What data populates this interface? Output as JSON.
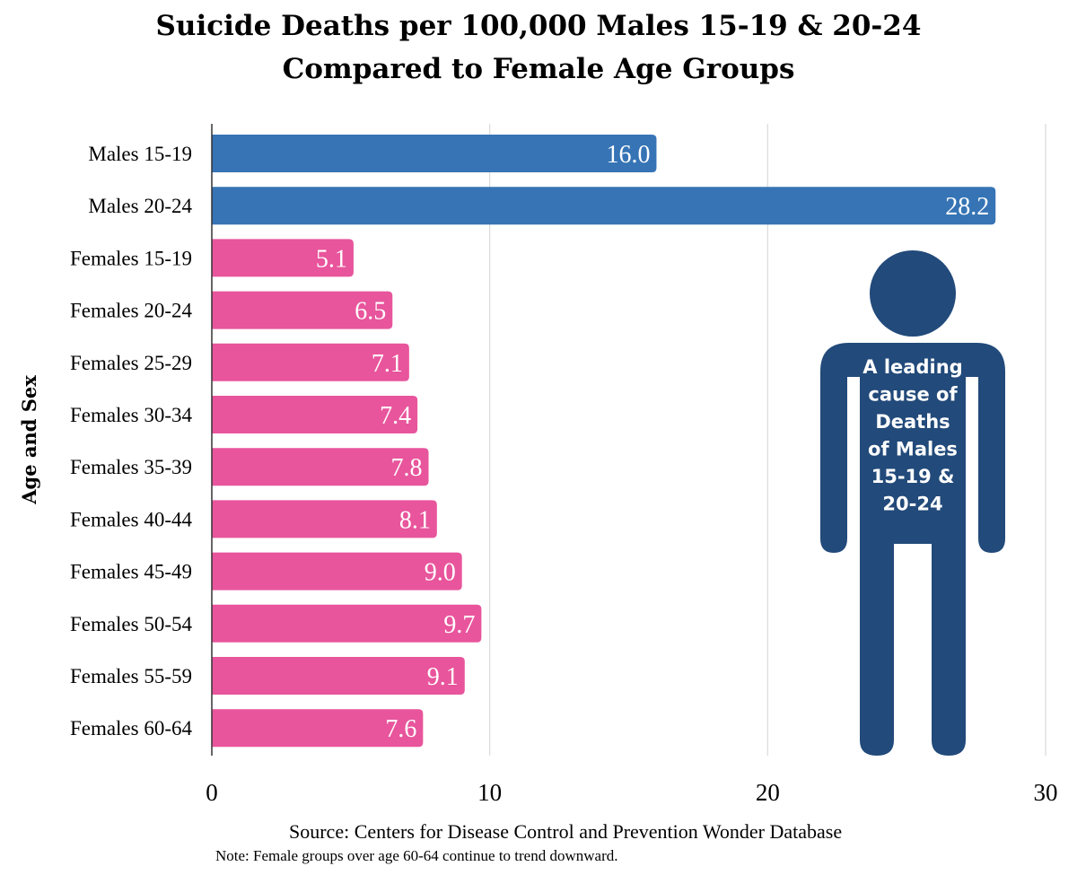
{
  "chart_data": {
    "type": "bar",
    "orientation": "horizontal",
    "title_lines": [
      "Suicide Deaths per 100,000 Males 15-19 & 20-24",
      "Compared to Female Age Groups"
    ],
    "ylabel": "Age and Sex",
    "xlabel": "",
    "xlim": [
      0,
      30
    ],
    "xticks": [
      0,
      10,
      20,
      30
    ],
    "grid": true,
    "categories": [
      "Males 15-19",
      "Males 20-24",
      "Females 15-19",
      "Females 20-24",
      "Females 25-29",
      "Females 30-34",
      "Females 35-39",
      "Females 40-44",
      "Females 45-49",
      "Females 50-54",
      "Females 55-59",
      "Females 60-64"
    ],
    "values": [
      16.0,
      28.2,
      5.1,
      6.5,
      7.1,
      7.4,
      7.8,
      8.1,
      9.0,
      9.7,
      9.1,
      7.6
    ],
    "value_labels": [
      "16.0",
      "28.2",
      "5.1",
      "6.5",
      "7.1",
      "7.4",
      "7.8",
      "8.1",
      "9.0",
      "9.7",
      "9.1",
      "7.6"
    ],
    "groups": [
      "male",
      "male",
      "female",
      "female",
      "female",
      "female",
      "female",
      "female",
      "female",
      "female",
      "female",
      "female"
    ],
    "colors": {
      "male": "#3674b5",
      "female": "#e8559c",
      "figure": "#224a7a",
      "grid": "#d9d9d9",
      "axis": "#333333"
    },
    "annotation": {
      "icon": "male-person-icon",
      "text_lines": [
        "A leading",
        "cause of",
        "Deaths",
        "of Males",
        "15-19 &",
        "20-24"
      ]
    }
  },
  "source": "Source: Centers for Disease Control and Prevention Wonder Database",
  "note": "Note: Female groups over age 60-64 continue to trend downward."
}
